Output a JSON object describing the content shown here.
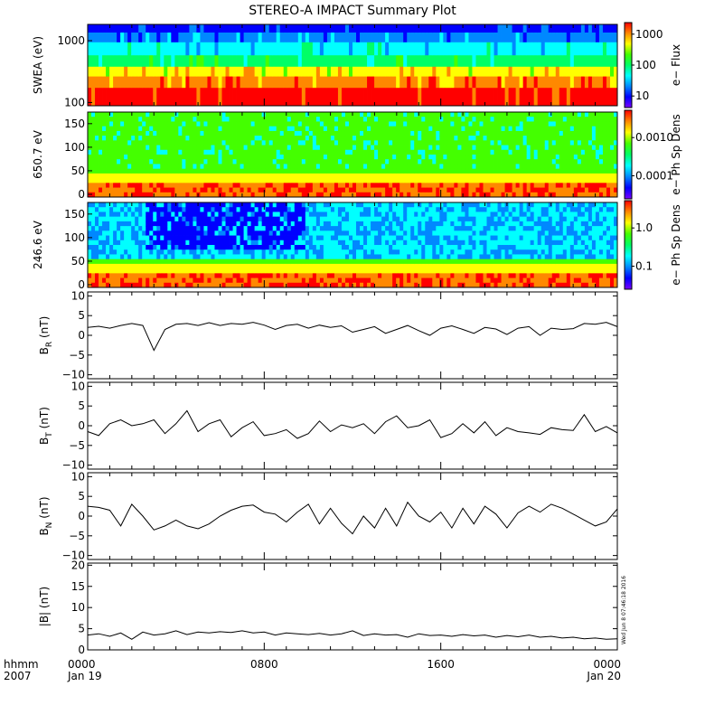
{
  "title": "STEREO-A IMPACT Summary Plot",
  "footer": {
    "hhmm_label": "hhmm",
    "year_label": "2007",
    "x_ticks": [
      "0000",
      "0800",
      "1600",
      "0000"
    ],
    "x_dates": [
      "Jan 19",
      "",
      "",
      "Jan 20"
    ],
    "timestamp": "Wed Jun  8 07:46:18 2016"
  },
  "colors": {
    "spectrogram": [
      "#7a00ff",
      "#0000ff",
      "#0088ff",
      "#00ffff",
      "#00ff66",
      "#44ff00",
      "#ffff00",
      "#ff8800",
      "#ff0000"
    ],
    "line": "#000000",
    "axis": "#000000"
  },
  "chart_data": [
    {
      "type": "heatmap",
      "name": "swea",
      "ylabel": "SWEA (eV)",
      "y_ticks": [
        "1000",
        "100"
      ],
      "colorbar_label": "e− Flux",
      "colorbar_ticks": [
        "1000",
        "100",
        "10"
      ],
      "y_scale": "log",
      "ylim": [
        100,
        2000
      ]
    },
    {
      "type": "heatmap",
      "name": "pad_650",
      "ylabel": "650.7 eV",
      "y_ticks": [
        "150",
        "100",
        "50",
        "0"
      ],
      "colorbar_label": "e− Ph Sp Dens",
      "colorbar_ticks": [
        "0.0010",
        "0.0001"
      ],
      "ylim": [
        0,
        180
      ]
    },
    {
      "type": "heatmap",
      "name": "pad_246",
      "ylabel": "246.6 eV",
      "y_ticks": [
        "150",
        "100",
        "50",
        "0"
      ],
      "colorbar_label": "e− Ph Sp Dens",
      "colorbar_ticks": [
        "1.0",
        "0.1"
      ],
      "ylim": [
        0,
        180
      ]
    },
    {
      "type": "line",
      "name": "br",
      "ylabel": "B",
      "ylabel_sub": "R",
      "ylabel_unit": "(nT)",
      "y_ticks": [
        "10",
        "5",
        "0",
        "−5",
        "−10"
      ],
      "ylim": [
        -11,
        11
      ],
      "x": [
        0,
        0.5,
        1,
        1.5,
        2,
        2.5,
        3,
        3.5,
        4,
        4.5,
        5,
        5.5,
        6,
        6.5,
        7,
        7.5,
        8,
        8.5,
        9,
        9.5,
        10,
        10.5,
        11,
        11.5,
        12,
        12.5,
        13,
        13.5,
        14,
        14.5,
        15,
        15.5,
        16,
        16.5,
        17,
        17.5,
        18,
        18.5,
        19,
        19.5,
        20,
        20.5,
        21,
        21.5,
        22,
        22.5,
        23,
        23.5,
        24
      ],
      "values": [
        2,
        2.3,
        1.8,
        2.5,
        3,
        2.5,
        -3.8,
        1.5,
        2.8,
        3,
        2.5,
        3.2,
        2.5,
        3,
        2.8,
        3.3,
        2.6,
        1.5,
        2.5,
        2.8,
        1.8,
        2.6,
        2,
        2.4,
        0.8,
        1.5,
        2.2,
        0.5,
        1.5,
        2.5,
        1.2,
        0,
        1.8,
        2.4,
        1.5,
        0.5,
        2,
        1.6,
        0.2,
        1.8,
        2.2,
        0,
        1.8,
        1.5,
        1.7,
        3,
        2.8,
        3.3,
        2.2
      ]
    },
    {
      "type": "line",
      "name": "bt",
      "ylabel": "B",
      "ylabel_sub": "T",
      "ylabel_unit": "(nT)",
      "y_ticks": [
        "10",
        "5",
        "0",
        "−5",
        "−10"
      ],
      "ylim": [
        -11,
        11
      ],
      "x": [
        0,
        0.5,
        1,
        1.5,
        2,
        2.5,
        3,
        3.5,
        4,
        4.5,
        5,
        5.5,
        6,
        6.5,
        7,
        7.5,
        8,
        8.5,
        9,
        9.5,
        10,
        10.5,
        11,
        11.5,
        12,
        12.5,
        13,
        13.5,
        14,
        14.5,
        15,
        15.5,
        16,
        16.5,
        17,
        17.5,
        18,
        18.5,
        19,
        19.5,
        20,
        20.5,
        21,
        21.5,
        22,
        22.5,
        23,
        23.5,
        24
      ],
      "values": [
        -1.5,
        -2.5,
        0.5,
        1.5,
        0,
        0.5,
        1.5,
        -2,
        0.5,
        3.8,
        -1.5,
        0.5,
        1.5,
        -2.8,
        -0.5,
        1,
        -2.5,
        -2,
        -1,
        -3.2,
        -2,
        1.2,
        -1.5,
        0.2,
        -0.5,
        0.5,
        -2,
        1,
        2.5,
        -0.5,
        0,
        1.5,
        -3,
        -2,
        0.5,
        -1.8,
        1,
        -2.5,
        -0.5,
        -1.5,
        -1.8,
        -2.2,
        -0.5,
        -1,
        -1.2,
        2.8,
        -1.5,
        -0.2,
        -1.8
      ]
    },
    {
      "type": "line",
      "name": "bn",
      "ylabel": "B",
      "ylabel_sub": "N",
      "ylabel_unit": "(nT)",
      "y_ticks": [
        "10",
        "5",
        "0",
        "−5",
        "−10"
      ],
      "ylim": [
        -11,
        11
      ],
      "x": [
        0,
        0.5,
        1,
        1.5,
        2,
        2.5,
        3,
        3.5,
        4,
        4.5,
        5,
        5.5,
        6,
        6.5,
        7,
        7.5,
        8,
        8.5,
        9,
        9.5,
        10,
        10.5,
        11,
        11.5,
        12,
        12.5,
        13,
        13.5,
        14,
        14.5,
        15,
        15.5,
        16,
        16.5,
        17,
        17.5,
        18,
        18.5,
        19,
        19.5,
        20,
        20.5,
        21,
        21.5,
        22,
        22.5,
        23,
        23.5,
        24
      ],
      "values": [
        2.5,
        2.2,
        1.5,
        -2.5,
        3,
        0,
        -3.5,
        -2.5,
        -1,
        -2.5,
        -3.2,
        -2,
        0,
        1.5,
        2.5,
        2.8,
        1,
        0.5,
        -1.5,
        1,
        3,
        -2,
        2,
        -1.8,
        -4.5,
        0,
        -3,
        2,
        -2.5,
        3.5,
        0,
        -1.5,
        1,
        -3,
        2,
        -2,
        2.5,
        0.5,
        -3,
        0.8,
        2.5,
        1,
        3,
        2,
        0.5,
        -1,
        -2.5,
        -1.5,
        1.8
      ]
    },
    {
      "type": "line",
      "name": "bmag",
      "ylabel": "|B| (nT)",
      "y_ticks": [
        "20",
        "15",
        "10",
        "5",
        "0"
      ],
      "ylim": [
        0,
        20.5
      ],
      "x": [
        0,
        0.5,
        1,
        1.5,
        2,
        2.5,
        3,
        3.5,
        4,
        4.5,
        5,
        5.5,
        6,
        6.5,
        7,
        7.5,
        8,
        8.5,
        9,
        9.5,
        10,
        10.5,
        11,
        11.5,
        12,
        12.5,
        13,
        13.5,
        14,
        14.5,
        15,
        15.5,
        16,
        16.5,
        17,
        17.5,
        18,
        18.5,
        19,
        19.5,
        20,
        20.5,
        21,
        21.5,
        22,
        22.5,
        23,
        23.5,
        24
      ],
      "values": [
        3.5,
        3.8,
        3.2,
        4,
        2.5,
        4.2,
        3.5,
        3.8,
        4.5,
        3.6,
        4.2,
        4,
        4.3,
        4.1,
        4.5,
        4,
        4.2,
        3.5,
        4,
        3.8,
        3.6,
        3.9,
        3.5,
        3.8,
        4.5,
        3.4,
        3.8,
        3.5,
        3.6,
        3,
        3.8,
        3.4,
        3.5,
        3.2,
        3.6,
        3.3,
        3.5,
        3,
        3.4,
        3.1,
        3.5,
        3,
        3.2,
        2.8,
        3,
        2.6,
        2.8,
        2.5,
        2.6
      ]
    }
  ]
}
